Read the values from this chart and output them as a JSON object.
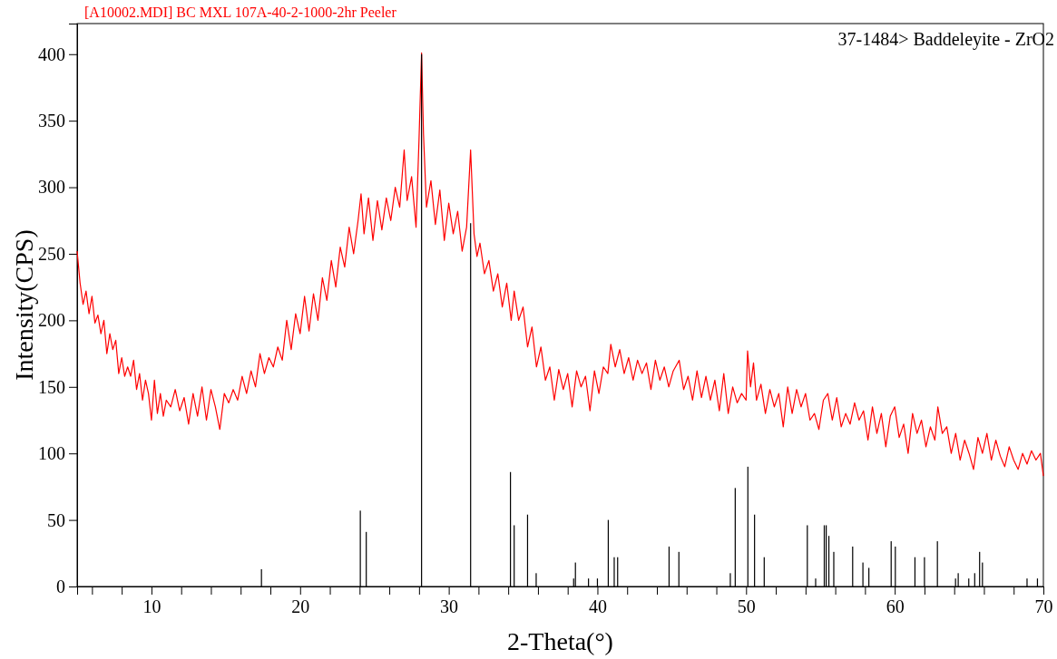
{
  "chart_data": {
    "type": "line",
    "title": "[A10002.MDI] BC MXL 107A-40-2-1000-2hr  Peeler",
    "xlabel": "2-Theta(°)",
    "ylabel": "Intensity(CPS)",
    "xlim": [
      5,
      70
    ],
    "ylim": [
      0,
      423
    ],
    "xticks": [
      {
        "value": 6,
        "label": null
      },
      {
        "value": 8,
        "label": null
      },
      10,
      {
        "value": 12,
        "label": null
      },
      {
        "value": 14,
        "label": null
      },
      {
        "value": 16,
        "label": null
      },
      {
        "value": 18,
        "label": null
      },
      20,
      {
        "value": 22,
        "label": null
      },
      {
        "value": 24,
        "label": null
      },
      {
        "value": 26,
        "label": null
      },
      {
        "value": 28,
        "label": null
      },
      30,
      {
        "value": 32,
        "label": null
      },
      {
        "value": 34,
        "label": null
      },
      {
        "value": 36,
        "label": null
      },
      {
        "value": 38,
        "label": null
      },
      40,
      {
        "value": 42,
        "label": null
      },
      {
        "value": 44,
        "label": null
      },
      {
        "value": 46,
        "label": null
      },
      {
        "value": 48,
        "label": null
      },
      50,
      {
        "value": 52,
        "label": null
      },
      {
        "value": 54,
        "label": null
      },
      {
        "value": 56,
        "label": null
      },
      {
        "value": 58,
        "label": null
      },
      60,
      {
        "value": 62,
        "label": null
      },
      {
        "value": 64,
        "label": null
      },
      {
        "value": 66,
        "label": null
      },
      {
        "value": 68,
        "label": null
      },
      70
    ],
    "yticks": [
      0,
      50,
      100,
      150,
      200,
      250,
      300,
      350,
      400
    ],
    "grid": false,
    "legend": "top right",
    "series": [
      {
        "color": "#ff0000",
        "x": [
          5.0,
          5.2,
          5.4,
          5.6,
          5.8,
          6.0,
          6.2,
          6.4,
          6.6,
          6.8,
          7.0,
          7.2,
          7.4,
          7.6,
          7.8,
          8.0,
          8.2,
          8.4,
          8.6,
          8.8,
          9.0,
          9.2,
          9.4,
          9.6,
          9.8,
          10.0,
          10.2,
          10.4,
          10.6,
          10.8,
          11.0,
          11.3,
          11.6,
          11.9,
          12.2,
          12.5,
          12.8,
          13.1,
          13.4,
          13.7,
          14.0,
          14.3,
          14.6,
          14.9,
          15.2,
          15.5,
          15.8,
          16.1,
          16.4,
          16.7,
          17.0,
          17.3,
          17.6,
          17.9,
          18.2,
          18.5,
          18.8,
          19.1,
          19.4,
          19.7,
          20.0,
          20.3,
          20.6,
          20.9,
          21.2,
          21.5,
          21.8,
          22.1,
          22.4,
          22.7,
          23.0,
          23.3,
          23.6,
          23.9,
          24.1,
          24.3,
          24.6,
          24.9,
          25.2,
          25.5,
          25.8,
          26.1,
          26.4,
          26.7,
          27.0,
          27.2,
          27.5,
          27.8,
          28.0,
          28.17,
          28.3,
          28.5,
          28.8,
          29.1,
          29.4,
          29.7,
          30.0,
          30.3,
          30.6,
          30.9,
          31.2,
          31.47,
          31.7,
          31.9,
          32.1,
          32.4,
          32.7,
          33.0,
          33.3,
          33.6,
          33.9,
          34.2,
          34.4,
          34.7,
          35.0,
          35.3,
          35.6,
          35.9,
          36.2,
          36.5,
          36.8,
          37.1,
          37.4,
          37.7,
          38.0,
          38.3,
          38.6,
          38.9,
          39.2,
          39.5,
          39.8,
          40.1,
          40.4,
          40.7,
          40.9,
          41.2,
          41.5,
          41.8,
          42.1,
          42.4,
          42.7,
          43.0,
          43.3,
          43.6,
          43.9,
          44.2,
          44.5,
          44.8,
          45.1,
          45.5,
          45.8,
          46.1,
          46.4,
          46.7,
          47.0,
          47.3,
          47.6,
          47.9,
          48.2,
          48.5,
          48.8,
          49.1,
          49.4,
          49.7,
          50.0,
          50.1,
          50.3,
          50.5,
          50.7,
          51.0,
          51.3,
          51.6,
          51.9,
          52.2,
          52.5,
          52.8,
          53.1,
          53.4,
          53.7,
          54.0,
          54.3,
          54.6,
          54.9,
          55.2,
          55.5,
          55.8,
          56.1,
          56.4,
          56.7,
          57.0,
          57.3,
          57.6,
          57.9,
          58.2,
          58.5,
          58.8,
          59.1,
          59.4,
          59.7,
          60.0,
          60.3,
          60.6,
          60.9,
          61.2,
          61.5,
          61.8,
          62.1,
          62.4,
          62.7,
          62.9,
          63.2,
          63.5,
          63.8,
          64.1,
          64.4,
          64.7,
          65.0,
          65.3,
          65.6,
          65.9,
          66.2,
          66.5,
          66.8,
          67.1,
          67.4,
          67.7,
          68.0,
          68.3,
          68.6,
          68.9,
          69.2,
          69.5,
          69.8,
          70.0
        ],
        "values": [
          252,
          228,
          212,
          222,
          205,
          218,
          198,
          204,
          190,
          200,
          175,
          190,
          178,
          185,
          160,
          172,
          158,
          165,
          158,
          170,
          148,
          160,
          140,
          155,
          145,
          125,
          155,
          130,
          145,
          128,
          140,
          135,
          148,
          132,
          142,
          122,
          145,
          128,
          150,
          125,
          148,
          135,
          118,
          145,
          138,
          148,
          140,
          158,
          145,
          162,
          150,
          175,
          160,
          172,
          165,
          180,
          170,
          200,
          178,
          205,
          190,
          218,
          192,
          220,
          200,
          232,
          215,
          245,
          225,
          255,
          240,
          270,
          250,
          275,
          295,
          265,
          292,
          260,
          290,
          268,
          292,
          275,
          300,
          285,
          328,
          290,
          308,
          270,
          336,
          401,
          340,
          285,
          305,
          272,
          298,
          260,
          288,
          265,
          282,
          252,
          270,
          328,
          265,
          248,
          258,
          235,
          245,
          222,
          235,
          210,
          228,
          200,
          222,
          200,
          210,
          180,
          195,
          165,
          180,
          155,
          165,
          140,
          163,
          148,
          160,
          135,
          162,
          150,
          158,
          132,
          162,
          145,
          165,
          160,
          182,
          165,
          178,
          160,
          172,
          155,
          170,
          160,
          168,
          148,
          170,
          155,
          165,
          150,
          162,
          170,
          148,
          158,
          140,
          162,
          142,
          158,
          140,
          155,
          132,
          160,
          130,
          150,
          138,
          145,
          140,
          177,
          150,
          168,
          140,
          152,
          130,
          148,
          135,
          145,
          120,
          150,
          130,
          148,
          135,
          145,
          125,
          130,
          118,
          140,
          145,
          125,
          142,
          120,
          130,
          122,
          138,
          125,
          132,
          110,
          135,
          115,
          130,
          105,
          128,
          135,
          112,
          122,
          100,
          130,
          115,
          125,
          105,
          120,
          110,
          135,
          115,
          120,
          100,
          115,
          95,
          110,
          100,
          88,
          112,
          100,
          115,
          95,
          110,
          98,
          90,
          105,
          95,
          88,
          100,
          92,
          102,
          95,
          100,
          83
        ]
      },
      {
        "type": "bar",
        "name": "37-1484> Baddeleyite - ZrO2",
        "color": "#000000",
        "x": [
          17.4,
          24.05,
          24.45,
          28.17,
          31.47,
          34.15,
          34.4,
          35.3,
          35.88,
          38.4,
          38.52,
          39.4,
          40.0,
          40.73,
          41.13,
          41.36,
          44.82,
          45.48,
          48.94,
          49.27,
          50.12,
          50.57,
          51.22,
          54.12,
          54.68,
          55.26,
          55.39,
          55.57,
          55.9,
          57.17,
          57.86,
          58.26,
          59.76,
          60.04,
          61.36,
          62.0,
          62.87,
          64.09,
          64.27,
          64.98,
          65.38,
          65.71,
          65.9,
          68.9,
          69.6
        ],
        "values": [
          13,
          57,
          41,
          400,
          273,
          86,
          46,
          54,
          10,
          6,
          18,
          6,
          6,
          50,
          22,
          22,
          30,
          26,
          10,
          74,
          90,
          54,
          22,
          46,
          6,
          46,
          46,
          38,
          26,
          30,
          18,
          14,
          34,
          30,
          22,
          22,
          34,
          6,
          10,
          6,
          10,
          26,
          18,
          6,
          6
        ]
      }
    ]
  }
}
